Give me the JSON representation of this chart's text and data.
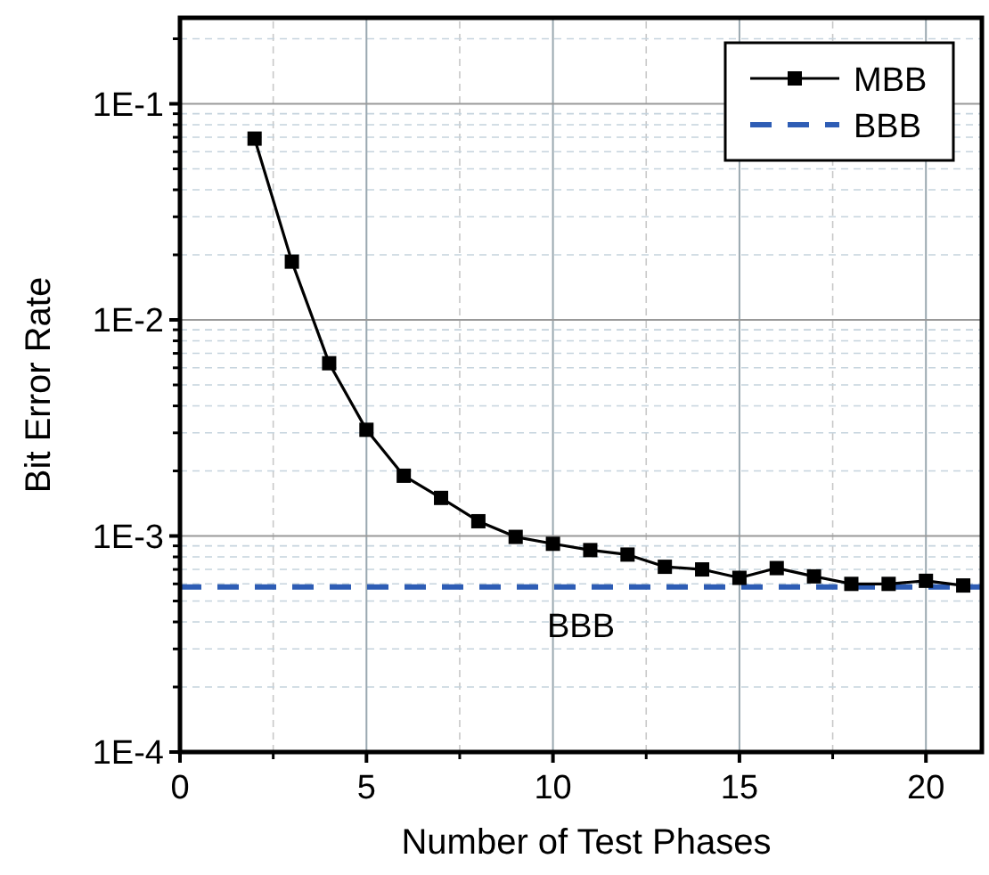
{
  "chart_data": {
    "type": "line",
    "xlabel": "Number of Test Phases",
    "ylabel": "Bit Error Rate",
    "log": "y",
    "grid": true,
    "legend": "top right",
    "marker": "square",
    "line_style": "solid",
    "xlim": [
      0,
      21.5
    ],
    "xticks": [
      0,
      5,
      10,
      15,
      20
    ],
    "ylim": [
      0.0001,
      0.25
    ],
    "yticks": [
      {
        "value": 0.0001,
        "label": "1E-4"
      },
      {
        "value": 0.001,
        "label": "1E-3"
      },
      {
        "value": 0.01,
        "label": "1E-2"
      },
      {
        "value": 0.1,
        "label": "1E-1"
      }
    ],
    "x": [
      2,
      3,
      4,
      5,
      6,
      7,
      8,
      9,
      10,
      11,
      12,
      13,
      14,
      15,
      16,
      17,
      18,
      19,
      20,
      21
    ],
    "series": [
      {
        "name": "MBB",
        "color": "#000000",
        "values": [
          0.069,
          0.0186,
          0.0063,
          0.0031,
          0.0019,
          0.0015,
          0.00117,
          0.00099,
          0.00092,
          0.00086,
          0.00082,
          0.00072,
          0.0007,
          0.00064,
          0.00071,
          0.00065,
          0.0006,
          0.0006,
          0.00062,
          0.00059
        ]
      }
    ],
    "ref_lines": [
      {
        "axis": "y",
        "value": 0.00058,
        "label": "BBB",
        "color": "#2e5db5",
        "line_style": "dashed"
      }
    ]
  }
}
